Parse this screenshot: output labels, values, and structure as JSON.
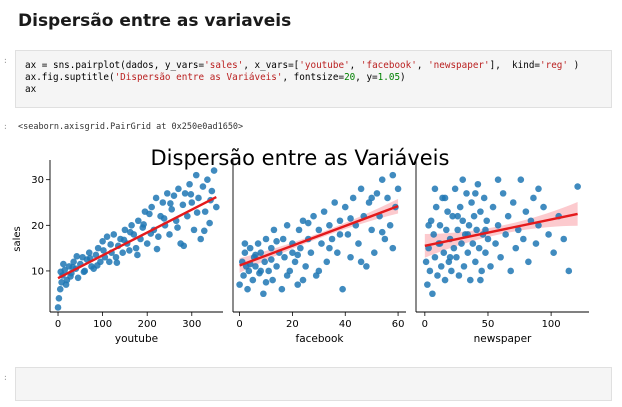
{
  "markdown": {
    "heading": "Dispersão entre as variaveis"
  },
  "code_cell": {
    "prompt": ":",
    "lines": [
      [
        {
          "t": "ax = sns.pairplot(dados, y_vars=",
          "c": "fn"
        },
        {
          "t": "'sales'",
          "c": "str"
        },
        {
          "t": ", x_vars=[",
          "c": "fn"
        },
        {
          "t": "'youtube'",
          "c": "str"
        },
        {
          "t": ", ",
          "c": "fn"
        },
        {
          "t": "'facebook'",
          "c": "str"
        },
        {
          "t": ", ",
          "c": "fn"
        },
        {
          "t": "'newspaper'",
          "c": "str"
        },
        {
          "t": "],  kind=",
          "c": "fn"
        },
        {
          "t": "'reg'",
          "c": "str"
        },
        {
          "t": " )",
          "c": "fn"
        }
      ],
      [
        {
          "t": "ax.fig.suptitle(",
          "c": "fn"
        },
        {
          "t": "'Dispersão entre as Variáveis'",
          "c": "str"
        },
        {
          "t": ", fontsize=",
          "c": "fn"
        },
        {
          "t": "20",
          "c": "num"
        },
        {
          "t": ", y=",
          "c": "fn"
        },
        {
          "t": "1.05",
          "c": "num"
        },
        {
          "t": ")",
          "c": "fn"
        }
      ],
      [
        {
          "t": "ax",
          "c": "fn"
        }
      ]
    ]
  },
  "output": {
    "prompt": ":",
    "text": "<seaborn.axisgrid.PairGrid at 0x250e0ad1650>"
  },
  "empty_cell": {
    "prompt": ":"
  },
  "colors": {
    "points": "#1f77b4",
    "regline": "#e41a1c",
    "ci": "#fbb4b9"
  },
  "chart_data": {
    "type": "scatter",
    "title": "Dispersão entre as Variáveis",
    "ylabel": "sales",
    "ylim": [
      1,
      33
    ],
    "yticks": [
      10,
      20,
      30
    ],
    "subplots": [
      {
        "xlabel": "youtube",
        "xlim": [
          -18,
          370
        ],
        "xticks": [
          0,
          100,
          200,
          300
        ],
        "regression": {
          "x0": 0,
          "y0": 8.4,
          "x1": 355,
          "y1": 26.2
        },
        "points": [
          [
            0,
            2
          ],
          [
            2,
            4
          ],
          [
            5,
            6
          ],
          [
            8,
            7.5
          ],
          [
            10,
            9
          ],
          [
            15,
            10.2
          ],
          [
            20,
            8
          ],
          [
            25,
            11
          ],
          [
            30,
            9.5
          ],
          [
            35,
            12
          ],
          [
            40,
            10.5
          ],
          [
            45,
            8.5
          ],
          [
            50,
            11.5
          ],
          [
            55,
            13
          ],
          [
            60,
            10
          ],
          [
            65,
            12.5
          ],
          [
            70,
            14
          ],
          [
            75,
            11
          ],
          [
            80,
            10.5
          ],
          [
            85,
            13.5
          ],
          [
            90,
            15
          ],
          [
            95,
            12
          ],
          [
            100,
            16.5
          ],
          [
            105,
            13
          ],
          [
            110,
            17.5
          ],
          [
            115,
            12
          ],
          [
            120,
            14
          ],
          [
            125,
            18
          ],
          [
            130,
            13
          ],
          [
            135,
            15.5
          ],
          [
            140,
            17
          ],
          [
            145,
            14
          ],
          [
            150,
            19
          ],
          [
            155,
            16
          ],
          [
            160,
            14.5
          ],
          [
            165,
            20
          ],
          [
            170,
            18
          ],
          [
            175,
            15
          ],
          [
            180,
            21
          ],
          [
            185,
            17
          ],
          [
            190,
            19.5
          ],
          [
            195,
            23
          ],
          [
            200,
            16
          ],
          [
            205,
            22.5
          ],
          [
            210,
            24
          ],
          [
            215,
            19
          ],
          [
            220,
            26
          ],
          [
            225,
            17.5
          ],
          [
            230,
            22
          ],
          [
            235,
            25
          ],
          [
            240,
            20
          ],
          [
            245,
            27
          ],
          [
            250,
            18
          ],
          [
            255,
            23.5
          ],
          [
            260,
            26.5
          ],
          [
            265,
            21
          ],
          [
            270,
            28
          ],
          [
            275,
            16
          ],
          [
            280,
            24.5
          ],
          [
            285,
            27
          ],
          [
            290,
            22
          ],
          [
            295,
            29
          ],
          [
            300,
            25
          ],
          [
            305,
            19
          ],
          [
            310,
            31
          ],
          [
            315,
            26
          ],
          [
            320,
            17
          ],
          [
            325,
            28.5
          ],
          [
            330,
            23
          ],
          [
            335,
            30
          ],
          [
            340,
            20.5
          ],
          [
            345,
            27.5
          ],
          [
            350,
            32
          ],
          [
            355,
            24
          ],
          [
            12,
            11.5
          ],
          [
            28,
            8.8
          ],
          [
            42,
            13.2
          ],
          [
            58,
            9.8
          ],
          [
            72,
            12.8
          ],
          [
            88,
            11.2
          ],
          [
            102,
            14.5
          ],
          [
            118,
            15.8
          ],
          [
            132,
            11.8
          ],
          [
            148,
            16.8
          ],
          [
            162,
            18.5
          ],
          [
            178,
            13.5
          ],
          [
            192,
            20.2
          ],
          [
            208,
            18.2
          ],
          [
            222,
            14.8
          ],
          [
            238,
            21.5
          ],
          [
            252,
            24.8
          ],
          [
            268,
            19.5
          ],
          [
            282,
            15.5
          ],
          [
            298,
            26.8
          ],
          [
            312,
            22.8
          ],
          [
            328,
            18.8
          ],
          [
            342,
            25.5
          ],
          [
            6,
            9.8
          ],
          [
            18,
            7
          ],
          [
            33,
            10.8
          ]
        ]
      },
      {
        "xlabel": "facebook",
        "xlim": [
          -2.5,
          63
        ],
        "xticks": [
          0,
          20,
          40,
          60
        ],
        "regression": {
          "x0": 0,
          "y0": 11.2,
          "x1": 60,
          "y1": 24.2
        },
        "ci_spread": 1.6,
        "points": [
          [
            0,
            7
          ],
          [
            1,
            12
          ],
          [
            1.5,
            9
          ],
          [
            2,
            14
          ],
          [
            2.5,
            11
          ],
          [
            3,
            6
          ],
          [
            3.5,
            10
          ],
          [
            4,
            15
          ],
          [
            5,
            8
          ],
          [
            5.5,
            13
          ],
          [
            6,
            11
          ],
          [
            7,
            16
          ],
          [
            7.5,
            9.5
          ],
          [
            8,
            14
          ],
          [
            9,
            5
          ],
          [
            9.5,
            12
          ],
          [
            10,
            17
          ],
          [
            11,
            10
          ],
          [
            12,
            15
          ],
          [
            12.5,
            8
          ],
          [
            13,
            19
          ],
          [
            14,
            11
          ],
          [
            15,
            14
          ],
          [
            16,
            6
          ],
          [
            16.5,
            17
          ],
          [
            17,
            13
          ],
          [
            18,
            20
          ],
          [
            19,
            10
          ],
          [
            20,
            16
          ],
          [
            21,
            12
          ],
          [
            22,
            7
          ],
          [
            22.5,
            19
          ],
          [
            23,
            15
          ],
          [
            24,
            21
          ],
          [
            25,
            11
          ],
          [
            26,
            17
          ],
          [
            27,
            14
          ],
          [
            28,
            22
          ],
          [
            29,
            9
          ],
          [
            30,
            19
          ],
          [
            31,
            16
          ],
          [
            32,
            23
          ],
          [
            33,
            12
          ],
          [
            34,
            20
          ],
          [
            35,
            17
          ],
          [
            36,
            25
          ],
          [
            37,
            14
          ],
          [
            38,
            21
          ],
          [
            39,
            6
          ],
          [
            40,
            24
          ],
          [
            41,
            18
          ],
          [
            42,
            13
          ],
          [
            43,
            26
          ],
          [
            44,
            20
          ],
          [
            45,
            16
          ],
          [
            46,
            28
          ],
          [
            47,
            22
          ],
          [
            48,
            11
          ],
          [
            49,
            25
          ],
          [
            50,
            19
          ],
          [
            51,
            14
          ],
          [
            52,
            27
          ],
          [
            53,
            22
          ],
          [
            54,
            30
          ],
          [
            55,
            17
          ],
          [
            56,
            26
          ],
          [
            57,
            20
          ],
          [
            58,
            31
          ],
          [
            59,
            24
          ],
          [
            60,
            28
          ],
          [
            2,
            16
          ],
          [
            6,
            13.5
          ],
          [
            10,
            7.5
          ],
          [
            14,
            16.5
          ],
          [
            18,
            9
          ],
          [
            22,
            13.5
          ],
          [
            26,
            20.5
          ],
          [
            30,
            10
          ],
          [
            34,
            15
          ],
          [
            38,
            18
          ],
          [
            42,
            21.5
          ],
          [
            46,
            12
          ],
          [
            50,
            26
          ],
          [
            54,
            18.5
          ],
          [
            58,
            15
          ],
          [
            4,
            11.5
          ],
          [
            8,
            10
          ],
          [
            12,
            12.5
          ],
          [
            20,
            14
          ],
          [
            24,
            8
          ]
        ]
      },
      {
        "xlabel": "newspaper",
        "xlim": [
          -7,
          130
        ],
        "xticks": [
          0,
          50,
          100
        ],
        "regression": {
          "x0": 0,
          "y0": 15.5,
          "x1": 121,
          "y1": 22.5
        },
        "ci_spread": 2.6,
        "points": [
          [
            1,
            12
          ],
          [
            2,
            7
          ],
          [
            3,
            15
          ],
          [
            4,
            10
          ],
          [
            5,
            21
          ],
          [
            6,
            5
          ],
          [
            7,
            18
          ],
          [
            8,
            13
          ],
          [
            9,
            24
          ],
          [
            10,
            9
          ],
          [
            11,
            16
          ],
          [
            12,
            20
          ],
          [
            13,
            11
          ],
          [
            14,
            26
          ],
          [
            15,
            14
          ],
          [
            16,
            8
          ],
          [
            17,
            19
          ],
          [
            18,
            23
          ],
          [
            19,
            12
          ],
          [
            20,
            17
          ],
          [
            21,
            10
          ],
          [
            22,
            22
          ],
          [
            23,
            15
          ],
          [
            24,
            28
          ],
          [
            25,
            13
          ],
          [
            26,
            19
          ],
          [
            27,
            9
          ],
          [
            28,
            24
          ],
          [
            29,
            16
          ],
          [
            30,
            21
          ],
          [
            31,
            11
          ],
          [
            32,
            18
          ],
          [
            33,
            27
          ],
          [
            34,
            14
          ],
          [
            35,
            20
          ],
          [
            36,
            8
          ],
          [
            37,
            25
          ],
          [
            38,
            16
          ],
          [
            39,
            22
          ],
          [
            40,
            12
          ],
          [
            41,
            19
          ],
          [
            42,
            29
          ],
          [
            43,
            15
          ],
          [
            44,
            23
          ],
          [
            45,
            10
          ],
          [
            46,
            18
          ],
          [
            47,
            26
          ],
          [
            48,
            14
          ],
          [
            49,
            21
          ],
          [
            50,
            17
          ],
          [
            52,
            11
          ],
          [
            54,
            24
          ],
          [
            56,
            16
          ],
          [
            58,
            20
          ],
          [
            60,
            13
          ],
          [
            62,
            27
          ],
          [
            64,
            18
          ],
          [
            66,
            22
          ],
          [
            68,
            10
          ],
          [
            70,
            25
          ],
          [
            72,
            15
          ],
          [
            74,
            19
          ],
          [
            76,
            30
          ],
          [
            78,
            17
          ],
          [
            80,
            23
          ],
          [
            82,
            12
          ],
          [
            84,
            21
          ],
          [
            86,
            26
          ],
          [
            88,
            16
          ],
          [
            90,
            20
          ],
          [
            94,
            24
          ],
          [
            98,
            18
          ],
          [
            102,
            14
          ],
          [
            106,
            22
          ],
          [
            110,
            17
          ],
          [
            114,
            10
          ],
          [
            121,
            28.5
          ],
          [
            8,
            28
          ],
          [
            16,
            26
          ],
          [
            30,
            30
          ],
          [
            44,
            8
          ],
          [
            58,
            30
          ],
          [
            90,
            28
          ],
          [
            3,
            20
          ],
          [
            12,
            16
          ],
          [
            20,
            13
          ],
          [
            26,
            22
          ],
          [
            34,
            18
          ],
          [
            40,
            27
          ],
          [
            48,
            19
          ]
        ]
      }
    ]
  }
}
